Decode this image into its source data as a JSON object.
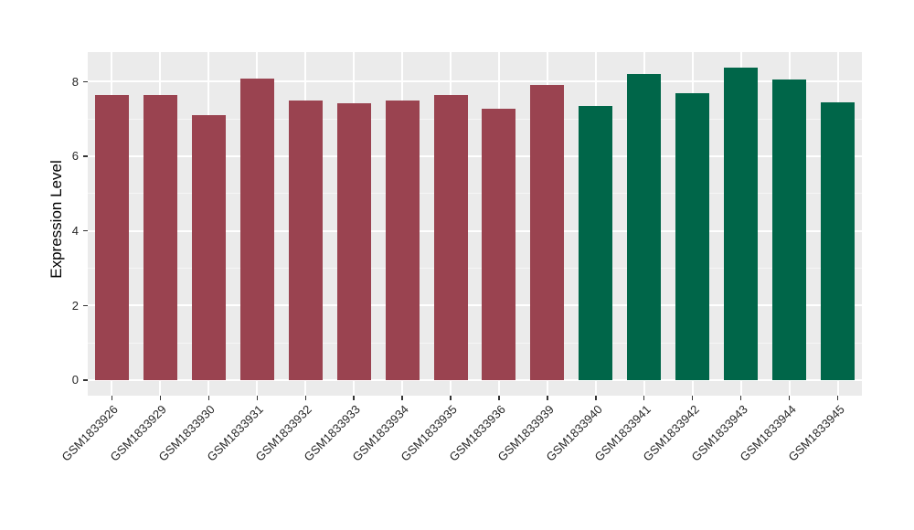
{
  "figure": {
    "background": "#ffffff",
    "panel_background": "#EBEBEB",
    "grid_major_color": "#FFFFFF",
    "grid_minor_color": "#F6F6F6",
    "tick_color": "#333333",
    "text_color": "#262626"
  },
  "chart_data": {
    "type": "bar",
    "title": "",
    "xlabel": "",
    "ylabel": "Expression Level",
    "categories": [
      "GSM1833926",
      "GSM1833929",
      "GSM1833930",
      "GSM1833931",
      "GSM1833932",
      "GSM1833933",
      "GSM1833934",
      "GSM1833935",
      "GSM1833936",
      "GSM1833939",
      "GSM1833940",
      "GSM1833941",
      "GSM1833942",
      "GSM1833943",
      "GSM1833944",
      "GSM1833945"
    ],
    "values": [
      7.65,
      7.63,
      7.1,
      8.08,
      7.49,
      7.41,
      7.5,
      7.63,
      7.27,
      7.92,
      7.35,
      8.2,
      7.68,
      8.37,
      8.05,
      7.44
    ],
    "bar_colors": [
      "#9A4350",
      "#9A4350",
      "#9A4350",
      "#9A4350",
      "#9A4350",
      "#9A4350",
      "#9A4350",
      "#9A4350",
      "#9A4350",
      "#9A4350",
      "#006649",
      "#006649",
      "#006649",
      "#006649",
      "#006649",
      "#006649"
    ],
    "group_colors": {
      "maroon": "#9A4350",
      "green": "#006649"
    },
    "y_ticks": [
      0,
      2,
      4,
      6,
      8
    ],
    "y_minor_ticks": [
      1,
      3,
      5,
      7
    ],
    "ylim": [
      -0.42,
      8.79
    ],
    "bar_width_ratio": 0.7,
    "grid": true,
    "legend": "none",
    "x_tick_rotation": 45
  }
}
